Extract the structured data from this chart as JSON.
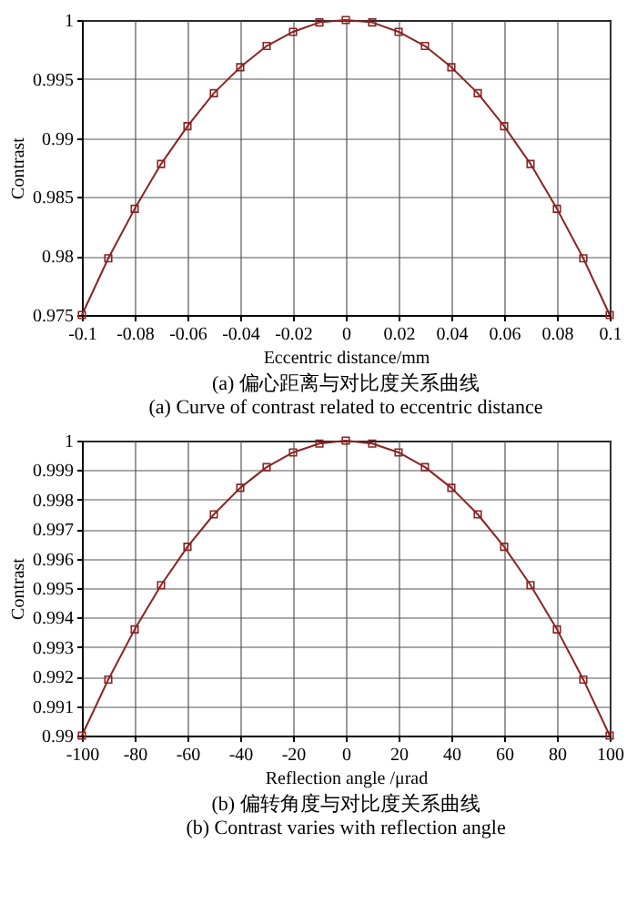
{
  "chart_data": [
    {
      "type": "line",
      "title": "(a) 偏心距离与对比度关系曲线",
      "subtitle": "(a) Curve of contrast related to eccentric distance",
      "xlabel": "Eccentric distance/mm",
      "ylabel": "Contrast",
      "x": [
        -0.1,
        -0.09,
        -0.08,
        -0.07,
        -0.06,
        -0.05,
        -0.04,
        -0.03,
        -0.02,
        -0.01,
        0,
        0.01,
        0.02,
        0.03,
        0.04,
        0.05,
        0.06,
        0.07,
        0.08,
        0.09,
        0.1
      ],
      "series": [
        {
          "color": "#8b2323",
          "values": [
            0.975,
            0.9798,
            0.984,
            0.9878,
            0.991,
            0.9938,
            0.996,
            0.9978,
            0.999,
            0.9998,
            1,
            0.9998,
            0.999,
            0.9978,
            0.996,
            0.9938,
            0.991,
            0.9878,
            0.984,
            0.9798,
            0.975
          ]
        }
      ],
      "xlim": [
        -0.1,
        0.1
      ],
      "ylim": [
        0.975,
        1
      ],
      "xticks": [
        -0.1,
        -0.08,
        -0.06,
        -0.04,
        -0.02,
        0,
        0.02,
        0.04,
        0.06,
        0.08,
        0.1
      ],
      "yticks": [
        0.975,
        0.98,
        0.985,
        0.99,
        0.995,
        1
      ],
      "grid": true,
      "marker": "square"
    },
    {
      "type": "line",
      "title": "(b) 偏转角度与对比度关系曲线",
      "subtitle": "(b) Contrast varies with reflection angle",
      "xlabel": "Reflection angle /μrad",
      "ylabel": "Contrast",
      "x": [
        -100,
        -90,
        -80,
        -70,
        -60,
        -50,
        -40,
        -30,
        -20,
        -10,
        0,
        10,
        20,
        30,
        40,
        50,
        60,
        70,
        80,
        90,
        100
      ],
      "series": [
        {
          "color": "#8b2323",
          "values": [
            0.99,
            0.9919,
            0.9936,
            0.9951,
            0.9964,
            0.9975,
            0.9984,
            0.9991,
            0.9996,
            0.9999,
            1,
            0.9999,
            0.9996,
            0.9991,
            0.9984,
            0.9975,
            0.9964,
            0.9951,
            0.9936,
            0.9919,
            0.99
          ]
        }
      ],
      "xlim": [
        -100,
        100
      ],
      "ylim": [
        0.99,
        1
      ],
      "xticks": [
        -100,
        -80,
        -60,
        -40,
        -20,
        0,
        20,
        40,
        60,
        80,
        100
      ],
      "yticks": [
        0.99,
        0.991,
        0.992,
        0.993,
        0.994,
        0.995,
        0.996,
        0.997,
        0.998,
        0.999,
        1
      ],
      "grid": true,
      "marker": "square"
    }
  ]
}
